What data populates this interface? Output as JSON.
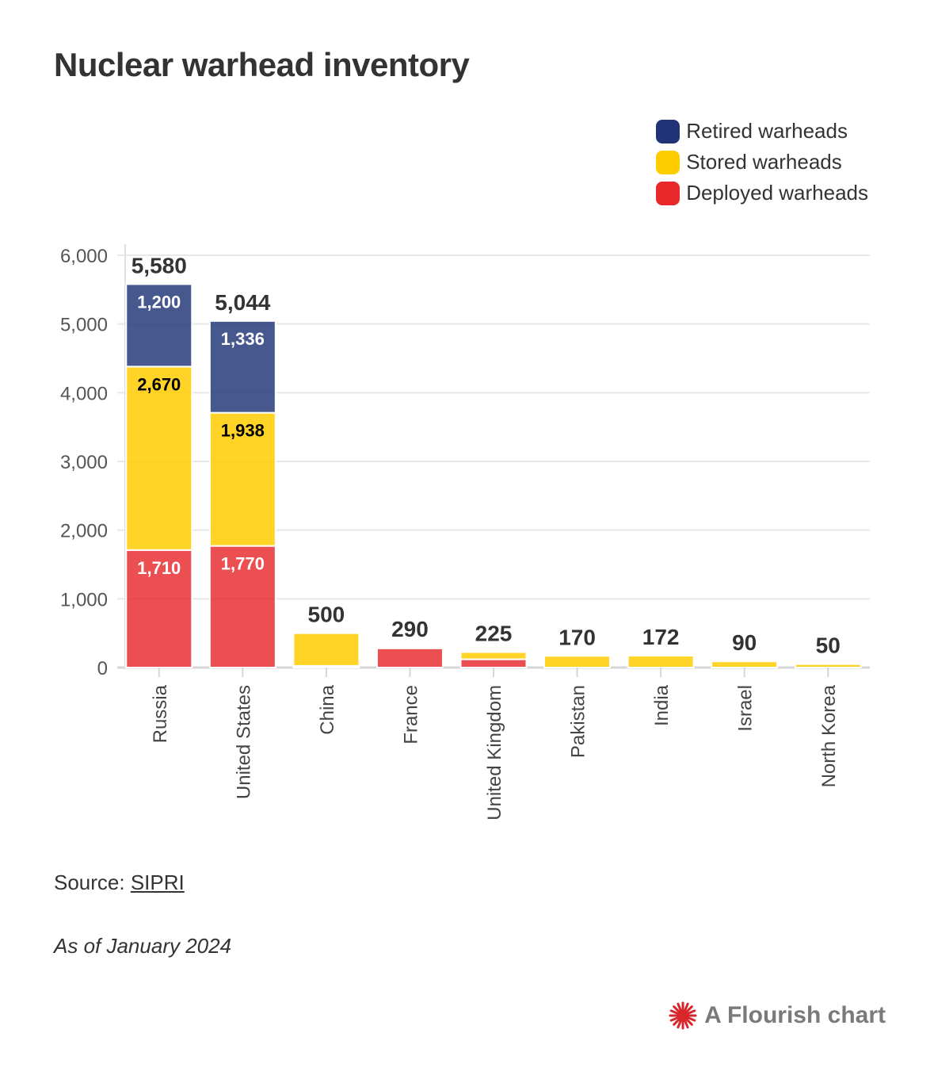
{
  "title": "Nuclear warhead inventory",
  "legend": [
    {
      "label": "Retired warheads",
      "color": "#1f3376"
    },
    {
      "label": "Stored warheads",
      "color": "#ffcc00"
    },
    {
      "label": "Deployed warheads",
      "color": "#e8282b"
    }
  ],
  "footer": {
    "source_prefix": "Source: ",
    "source_link": "SIPRI",
    "note": "As of January 2024"
  },
  "credit": {
    "text": "A Flourish chart",
    "icon": "flourish-logo-icon",
    "color": "#d9262a"
  },
  "chart_data": {
    "type": "bar",
    "stacked": true,
    "categories": [
      "Russia",
      "United States",
      "China",
      "France",
      "United Kingdom",
      "Pakistan",
      "India",
      "Israel",
      "North Korea"
    ],
    "series": [
      {
        "name": "Deployed warheads",
        "color": "#e8282b",
        "values": [
          1710,
          1770,
          24,
          280,
          120,
          0,
          0,
          0,
          0
        ]
      },
      {
        "name": "Stored warheads",
        "color": "#ffcc00",
        "values": [
          2670,
          1938,
          476,
          10,
          105,
          170,
          172,
          90,
          50
        ]
      },
      {
        "name": "Retired warheads",
        "color": "#1f3376",
        "values": [
          1200,
          1336,
          0,
          0,
          0,
          0,
          0,
          0,
          0
        ]
      }
    ],
    "segment_labels": [
      {
        "category": "Russia",
        "series": "Deployed warheads",
        "text": "1,710",
        "color": "#ffffff"
      },
      {
        "category": "Russia",
        "series": "Stored warheads",
        "text": "2,670",
        "color": "#000000"
      },
      {
        "category": "Russia",
        "series": "Retired warheads",
        "text": "1,200",
        "color": "#ffffff"
      },
      {
        "category": "United States",
        "series": "Deployed warheads",
        "text": "1,770",
        "color": "#ffffff"
      },
      {
        "category": "United States",
        "series": "Stored warheads",
        "text": "1,938",
        "color": "#000000"
      },
      {
        "category": "United States",
        "series": "Retired warheads",
        "text": "1,336",
        "color": "#ffffff"
      }
    ],
    "totals": [
      "5,580",
      "5,044",
      "500",
      "290",
      "225",
      "170",
      "172",
      "90",
      "50"
    ],
    "total_values": [
      5580,
      5044,
      500,
      290,
      225,
      170,
      172,
      90,
      50
    ],
    "ylim": [
      0,
      6000
    ],
    "yticks": [
      0,
      1000,
      2000,
      3000,
      4000,
      5000,
      6000
    ],
    "ytick_labels": [
      "0",
      "1,000",
      "2,000",
      "3,000",
      "4,000",
      "5,000",
      "6,000"
    ],
    "grid": true,
    "legend_position": "top-right",
    "xlabel": "",
    "ylabel": ""
  }
}
